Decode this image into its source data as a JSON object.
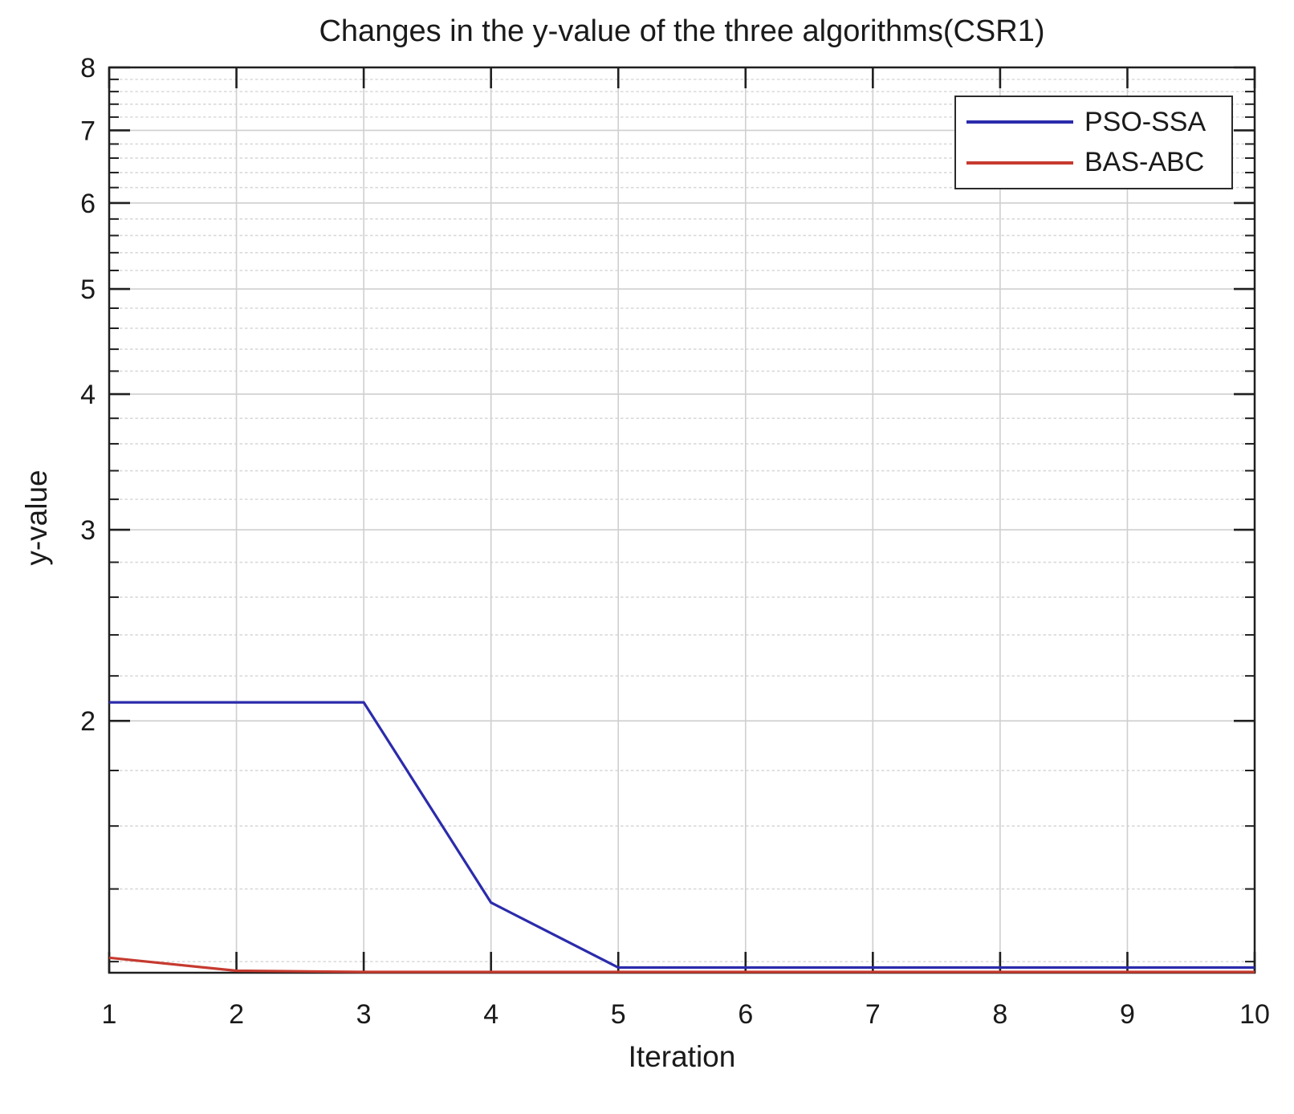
{
  "chart_data": {
    "type": "line",
    "title": "Changes in the y-value of the three algorithms(CSR1)",
    "xlabel": "Iteration",
    "ylabel": "y-value",
    "x": [
      1,
      2,
      3,
      4,
      5,
      6,
      7,
      8,
      9,
      10
    ],
    "series": [
      {
        "name": "PSO-SSA",
        "color": "#2b2bac",
        "values": [
          2.08,
          2.08,
          2.08,
          1.36,
          1.185,
          1.185,
          1.185,
          1.185,
          1.185,
          1.185
        ]
      },
      {
        "name": "BAS-ABC",
        "color": "#c63a2f",
        "values": [
          1.21,
          1.177,
          1.174,
          1.174,
          1.174,
          1.174,
          1.174,
          1.174,
          1.174,
          1.174
        ]
      }
    ],
    "xlim": [
      1,
      10
    ],
    "ylim": [
      1.172,
      8
    ],
    "yscale": "log",
    "x_ticks": [
      1,
      2,
      3,
      4,
      5,
      6,
      7,
      8,
      9,
      10
    ],
    "y_major_ticks": [
      2,
      3,
      4,
      5,
      6,
      7,
      8
    ],
    "y_minor_step": 0.2,
    "y_minor_range": [
      1.2,
      7.8
    ],
    "grid": "on",
    "legend_position": "top-right",
    "colors": {
      "major_grid": "#cfcfcf",
      "minor_grid": "#d9d9d9",
      "axis": "#1f1f1f",
      "background": "#ffffff"
    }
  }
}
